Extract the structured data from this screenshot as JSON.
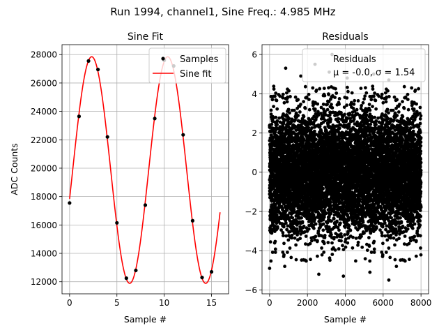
{
  "figure": {
    "suptitle": "Run 1994, channel1, Sine Freq.: 4.985 MHz"
  },
  "chart_data": [
    {
      "type": "line",
      "title": "Sine Fit",
      "xlabel": "Sample #",
      "ylabel": "ADC Counts",
      "xlim": [
        -0.8,
        16.8
      ],
      "ylim": [
        11150,
        28700
      ],
      "xticks": [
        0,
        5,
        10,
        15
      ],
      "xtick_labels": [
        "0",
        "5",
        "10",
        "15"
      ],
      "yticks": [
        12000,
        14000,
        16000,
        18000,
        20000,
        22000,
        24000,
        26000,
        28000
      ],
      "ytick_labels": [
        "12000",
        "14000",
        "16000",
        "18000",
        "20000",
        "22000",
        "24000",
        "26000",
        "28000"
      ],
      "grid": true,
      "legend": {
        "placement": "upper right",
        "entries": [
          {
            "label": "Samples",
            "marker": "dot",
            "color": "#000000"
          },
          {
            "label": "Sine fit",
            "marker": "line",
            "color": "#ff0000"
          }
        ]
      },
      "samples": {
        "name": "Samples",
        "color": "#000000",
        "x": [
          0,
          1,
          2,
          3,
          4,
          5,
          6,
          7,
          8,
          9,
          10,
          11,
          12,
          13,
          14,
          15
        ],
        "y": [
          17550,
          23650,
          27550,
          26950,
          22200,
          16150,
          12250,
          12800,
          17400,
          23500,
          27600,
          27200,
          22350,
          16300,
          12300,
          12700
        ]
      },
      "fit": {
        "name": "Sine fit",
        "color": "#ff0000",
        "function": "sine",
        "x_range": [
          0,
          15.9
        ],
        "offset": 19870,
        "amplitude": 7980,
        "period": 8.03,
        "phase": 0.257
      }
    },
    {
      "type": "scatter",
      "title": "Residuals",
      "xlabel": "Sample #",
      "ylabel": "",
      "xlim": [
        -400,
        8400
      ],
      "ylim": [
        -6.2,
        6.5
      ],
      "xticks": [
        0,
        2000,
        4000,
        6000,
        8000
      ],
      "xtick_labels": [
        "0",
        "2000",
        "4000",
        "6000",
        "8000"
      ],
      "yticks": [
        -6,
        -4,
        -2,
        0,
        2,
        4,
        6
      ],
      "ytick_labels": [
        "−6",
        "−4",
        "−2",
        "0",
        "2",
        "4",
        "6"
      ],
      "grid": true,
      "legend": {
        "placement": "upper right",
        "entries": [
          {
            "label": "Residuals",
            "marker": "none",
            "color": "#000000"
          },
          {
            "label": "μ = -0.0, σ = 1.54",
            "marker": "none",
            "color": "#000000"
          }
        ]
      },
      "series": [
        {
          "name": "Residuals",
          "color": "#000000",
          "n_points": 8000,
          "x_range": [
            0,
            8000
          ],
          "mean": -0.0,
          "std": 1.54,
          "outliers": [
            {
              "x": 850,
              "y": 5.3
            },
            {
              "x": 1650,
              "y": 4.9
            },
            {
              "x": 2400,
              "y": 5.5
            },
            {
              "x": 3150,
              "y": 5.1
            },
            {
              "x": 3300,
              "y": 6.0
            },
            {
              "x": 4100,
              "y": 4.8
            },
            {
              "x": 5500,
              "y": 5.0
            },
            {
              "x": 6300,
              "y": 4.7
            },
            {
              "x": 0,
              "y": -4.9
            },
            {
              "x": 800,
              "y": -4.8
            },
            {
              "x": 2600,
              "y": -5.2
            },
            {
              "x": 3900,
              "y": -5.3
            },
            {
              "x": 5300,
              "y": -5.1
            },
            {
              "x": 6300,
              "y": -5.5
            },
            {
              "x": 6700,
              "y": -4.8
            }
          ]
        }
      ]
    }
  ]
}
